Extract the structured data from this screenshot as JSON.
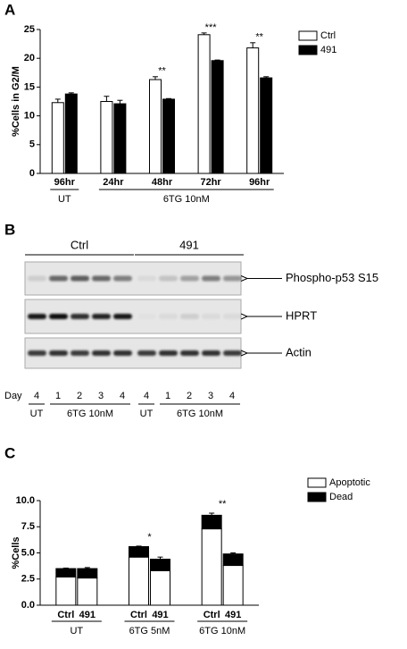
{
  "chart_data": [
    {
      "type": "bar",
      "panel": "A",
      "ylabel": "%Cells in G2/M",
      "groups": [
        {
          "label": "UT",
          "categories": [
            "96hr"
          ]
        },
        {
          "label": "6TG 10nM",
          "categories": [
            "24hr",
            "48hr",
            "72hr",
            "96hr"
          ]
        }
      ],
      "series": [
        {
          "name": "Ctrl",
          "color": "#ffffff",
          "values": [
            12.3,
            12.5,
            16.3,
            24.1,
            21.8
          ],
          "errors": [
            0.6,
            0.9,
            0.5,
            0.3,
            0.9
          ]
        },
        {
          "name": "491",
          "color": "#000000",
          "values": [
            13.8,
            12.1,
            12.9,
            19.6,
            16.6
          ],
          "errors": [
            0.2,
            0.6,
            0.1,
            0.1,
            0.2
          ]
        }
      ],
      "annotations": [
        null,
        null,
        "**",
        "***",
        "**"
      ],
      "ylim": [
        0,
        25
      ],
      "yticks": [
        0,
        5,
        10,
        15,
        20,
        25
      ],
      "legend": "right"
    },
    {
      "type": "stacked_bar",
      "panel": "C",
      "ylabel": "%Cells",
      "groups": [
        {
          "label": "UT",
          "categories": [
            "Ctrl",
            "491"
          ]
        },
        {
          "label": "6TG 5nM",
          "categories": [
            "Ctrl",
            "491"
          ],
          "annotation": "*"
        },
        {
          "label": "6TG 10nM",
          "categories": [
            "Ctrl",
            "491"
          ],
          "annotation": "**"
        }
      ],
      "series": [
        {
          "name": "Apoptotic",
          "color": "#ffffff",
          "values": [
            2.7,
            2.6,
            4.6,
            3.3,
            7.3,
            3.8
          ]
        },
        {
          "name": "Dead",
          "color": "#000000",
          "values": [
            0.8,
            0.9,
            1.0,
            1.1,
            1.3,
            1.1
          ],
          "errors": [
            0.05,
            0.1,
            0.05,
            0.2,
            0.2,
            0.1
          ]
        }
      ],
      "ylim": [
        0,
        10
      ],
      "yticks": [
        {
          "value": 0,
          "label": "0.0"
        },
        {
          "value": 2.5,
          "label": "2.5"
        },
        {
          "value": 5,
          "label": "5.0"
        },
        {
          "value": 7.5,
          "label": "7.5"
        },
        {
          "value": 10,
          "label": "10.0"
        }
      ],
      "legend": "right"
    }
  ],
  "blot": {
    "panel": "B",
    "groups": [
      "Ctrl",
      "491"
    ],
    "rows": [
      "Phospho-p53 S15",
      "HPRT",
      "Actin"
    ],
    "day_label": "Day",
    "lane_groups": [
      {
        "label": "UT",
        "days": [
          4
        ]
      },
      {
        "label": "6TG 10nM",
        "days": [
          1,
          2,
          3,
          4
        ]
      },
      {
        "label": "UT",
        "days": [
          4
        ]
      },
      {
        "label": "6TG 10nM",
        "days": [
          1,
          2,
          3,
          4
        ]
      }
    ]
  }
}
